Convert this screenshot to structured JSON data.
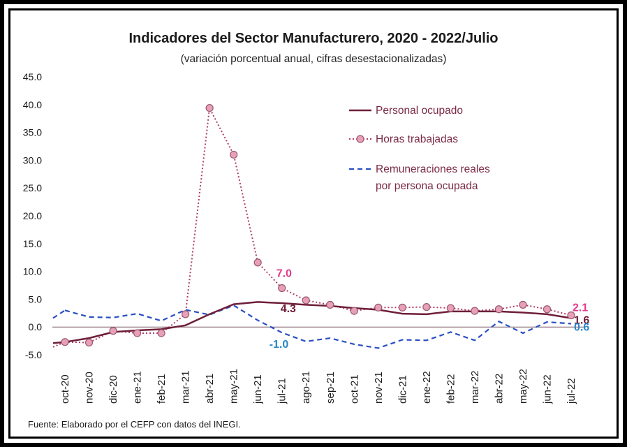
{
  "chart_data": {
    "type": "line",
    "title": "Indicadores del Sector Manufacturero, 2020 - 2022/Julio",
    "subtitle": "(variación porcentual anual, cifras desestacionalizadas)",
    "source": "Fuente: Elaborado por el CEFP con datos del INEGI.",
    "ylim": [
      -5,
      45
    ],
    "yticks": [
      "45.0",
      "40.0",
      "35.0",
      "30.0",
      "25.0",
      "20.0",
      "15.0",
      "10.0",
      "5.0",
      "0.0",
      "-5.0"
    ],
    "ytick_values": [
      45,
      40,
      35,
      30,
      25,
      20,
      15,
      10,
      5,
      0,
      -5
    ],
    "categories": [
      "oct-20",
      "nov-20",
      "dic-20",
      "ene-21",
      "feb-21",
      "mar-21",
      "abr-21",
      "may-21",
      "jun-21",
      "jul-21",
      "ago-21",
      "sep-21",
      "oct-21",
      "nov-21",
      "dic-21",
      "ene-22",
      "feb-22",
      "mar-22",
      "abr-22",
      "may-22",
      "jun-22",
      "jul-22"
    ],
    "series": [
      {
        "name": "Personal ocupado",
        "color": "#6e1f38",
        "style": "solid",
        "values": [
          -2.7,
          -2.0,
          -0.9,
          -0.6,
          -0.4,
          0.3,
          2.3,
          4.1,
          4.5,
          4.3,
          4.0,
          3.8,
          3.4,
          3.1,
          2.4,
          2.3,
          2.8,
          2.8,
          2.8,
          2.6,
          2.3,
          1.6
        ]
      },
      {
        "name": "Horas trabajadas",
        "color": "#b03a6a",
        "marker_fill": "#e8a0b8",
        "style": "dotted",
        "values": [
          -2.7,
          -2.8,
          -0.7,
          -1.1,
          -1.1,
          2.3,
          39.4,
          31.0,
          11.6,
          7.0,
          4.8,
          4.0,
          2.9,
          3.5,
          3.5,
          3.6,
          3.4,
          2.9,
          3.2,
          4.0,
          3.2,
          2.1
        ]
      },
      {
        "name": "Remuneraciones reales por persona ocupada",
        "legend_lines": [
          "Remuneraciones reales",
          "por persona ocupada"
        ],
        "color": "#2a4fc4",
        "style": "dashed",
        "values": [
          3.0,
          1.8,
          1.7,
          2.4,
          1.1,
          3.1,
          2.2,
          3.9,
          1.2,
          -1.0,
          -2.6,
          -2.0,
          -3.1,
          -3.8,
          -2.3,
          -2.4,
          -0.9,
          -2.4,
          1.0,
          -1.1,
          0.9,
          0.6
        ]
      }
    ],
    "annotations": [
      {
        "text": "7.0",
        "series": 1,
        "index": 9,
        "color": "#e23a8c"
      },
      {
        "text": "4.3",
        "series": 0,
        "index": 9,
        "color": "#6e1f38"
      },
      {
        "text": "-1.0",
        "series": 2,
        "index": 9,
        "color": "#2a86c8"
      },
      {
        "text": "2.1",
        "series": 1,
        "index": 21,
        "color": "#e23a8c"
      },
      {
        "text": "1.6",
        "series": 0,
        "index": 21,
        "color": "#6e1f38"
      },
      {
        "text": "0.6",
        "series": 2,
        "index": 21,
        "color": "#2a86c8"
      }
    ],
    "legend_position": "top-right"
  }
}
